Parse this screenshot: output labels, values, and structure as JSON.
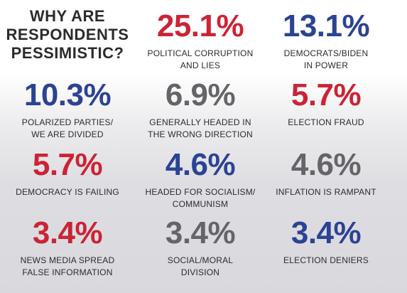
{
  "title_lines": [
    "WHY ARE",
    "RESPONDENTS",
    "PESSIMISTIC?"
  ],
  "colors": {
    "red": "#cc2336",
    "blue": "#2b4393",
    "gray": "#646469",
    "text": "#2b2b2f"
  },
  "chart_data": {
    "type": "table",
    "title": "WHY ARE RESPONDENTS PESSIMISTIC?",
    "unit": "%",
    "items": [
      {
        "label": "POLITICAL CORRUPTION\nAND LIES",
        "value": 25.1,
        "display": "25.1%",
        "color": "red"
      },
      {
        "label": "DEMOCRATS/BIDEN\nIN POWER",
        "value": 13.1,
        "display": "13.1%",
        "color": "blue"
      },
      {
        "label": "POLARIZED PARTIES/\nWE ARE DIVIDED",
        "value": 10.3,
        "display": "10.3%",
        "color": "blue"
      },
      {
        "label": "GENERALLY HEADED IN\nTHE WRONG DIRECTION",
        "value": 6.9,
        "display": "6.9%",
        "color": "gray"
      },
      {
        "label": "ELECTION FRAUD",
        "value": 5.7,
        "display": "5.7%",
        "color": "red"
      },
      {
        "label": "DEMOCRACY IS FAILING",
        "value": 5.7,
        "display": "5.7%",
        "color": "red"
      },
      {
        "label": "HEADED FOR SOCIALISM/\nCOMMUNISM",
        "value": 4.6,
        "display": "4.6%",
        "color": "blue"
      },
      {
        "label": "INFLATION IS RAMPANT",
        "value": 4.6,
        "display": "4.6%",
        "color": "gray"
      },
      {
        "label": "NEWS MEDIA SPREAD\nFALSE INFORMATION",
        "value": 3.4,
        "display": "3.4%",
        "color": "red"
      },
      {
        "label": "SOCIAL/MORAL\nDIVISION",
        "value": 3.4,
        "display": "3.4%",
        "color": "gray"
      },
      {
        "label": "ELECTION DENIERS",
        "value": 3.4,
        "display": "3.4%",
        "color": "blue"
      }
    ]
  }
}
